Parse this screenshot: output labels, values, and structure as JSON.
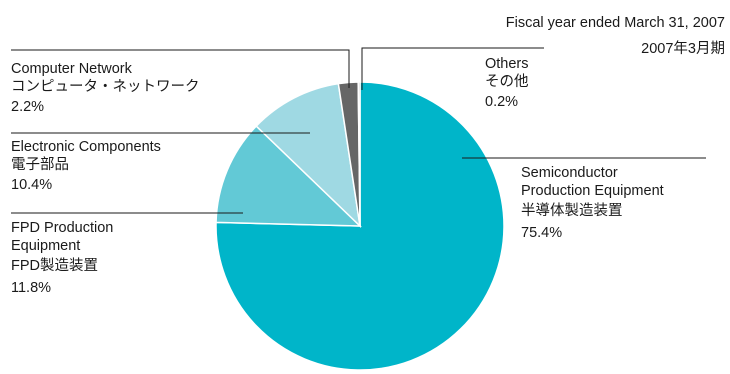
{
  "header": {
    "period_en": "Fiscal year ended March 31, 2007",
    "period_ja": "2007年3月期"
  },
  "chart_data": {
    "type": "pie",
    "title": "",
    "unit": "%",
    "start": "12 o'clock",
    "direction": "clockwise",
    "slices": [
      {
        "name_en": "Semiconductor",
        "name_en2": "Production Equipment",
        "name_ja": "半導体製造装置",
        "value": 75.4,
        "label": "75.4%",
        "color": "#00b5c9"
      },
      {
        "name_en": "FPD Production",
        "name_en2": "Equipment",
        "name_ja": "FPD製造装置",
        "value": 11.8,
        "label": "11.8%",
        "color": "#62c9d6"
      },
      {
        "name_en": "Electronic Components",
        "name_en2": "",
        "name_ja": "電子部品",
        "value": 10.4,
        "label": "10.4%",
        "color": "#9fd9e3"
      },
      {
        "name_en": "Computer Network",
        "name_en2": "",
        "name_ja": "コンピュータ・ネットワーク",
        "value": 2.2,
        "label": "2.2%",
        "color": "#666666"
      },
      {
        "name_en": "Others",
        "name_en2": "",
        "name_ja": "その他",
        "value": 0.2,
        "label": "0.2%",
        "color": "#b0b0b0"
      }
    ]
  }
}
